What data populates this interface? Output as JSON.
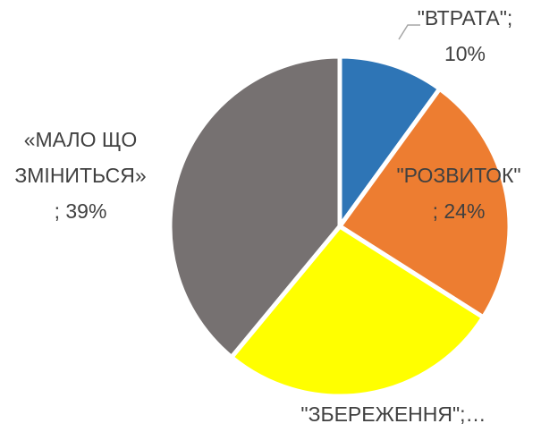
{
  "chart_data": {
    "type": "pie",
    "labels": [
      [
        "\"ВТРАТА\";",
        "10%"
      ],
      [
        "\"РОЗВИТОК\"",
        "; 24%"
      ],
      [
        "\"ЗБЕРЕЖЕННЯ\";…"
      ],
      [
        "«МАЛО ЩО",
        "ЗМІНИТЬСЯ»",
        "; 39%"
      ]
    ],
    "values": [
      10,
      24,
      27,
      39
    ],
    "colors": [
      "#2e75b6",
      "#ed7d31",
      "#ffff00",
      "#767171"
    ]
  }
}
